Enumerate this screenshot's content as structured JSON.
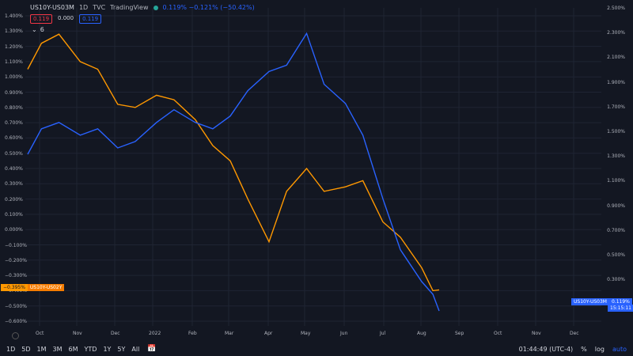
{
  "legend": {
    "symbol": "US10Y-US03M",
    "interval": "1D",
    "exchange": "TVC",
    "source": "TradingView",
    "change": "0.119% −0.121% (−50.42%)"
  },
  "badges": {
    "bid": "0.119",
    "spread": "0.000",
    "ask": "0.119"
  },
  "collapse": {
    "label": "6"
  },
  "left_axis": [
    "1.400%",
    "1.300%",
    "1.200%",
    "1.100%",
    "1.000%",
    "0.900%",
    "0.800%",
    "0.700%",
    "0.600%",
    "0.500%",
    "0.400%",
    "0.300%",
    "0.200%",
    "0.100%",
    "0.000%",
    "−0.100%",
    "−0.200%",
    "−0.300%",
    "−0.400%",
    "−0.500%",
    "−0.600%"
  ],
  "right_axis": [
    "2.500%",
    "2.300%",
    "2.100%",
    "1.900%",
    "1.700%",
    "1.500%",
    "1.300%",
    "1.100%",
    "0.900%",
    "0.700%",
    "0.500%",
    "0.300%"
  ],
  "x_axis": [
    "Oct",
    "Nov",
    "Dec",
    "2022",
    "Feb",
    "Mar",
    "Apr",
    "May",
    "Jun",
    "Jul",
    "Aug",
    "Sep",
    "Oct",
    "Nov",
    "Dec"
  ],
  "tags": {
    "left_value": "−0.395%",
    "left_name": "US10Y-US02Y",
    "right_name": "US10Y-US03M",
    "right_value": "0.119%",
    "right_time": "15:15:11"
  },
  "bottom": {
    "timeframes": [
      "1D",
      "5D",
      "1M",
      "3M",
      "6M",
      "YTD",
      "1Y",
      "5Y",
      "All"
    ],
    "clock": "01:44:49 (UTC-4)",
    "pct": "%",
    "log": "log",
    "auto": "auto"
  },
  "chart_data": {
    "type": "line",
    "x": [
      "2021-09-20",
      "2021-10-01",
      "2021-10-15",
      "2021-11-01",
      "2021-11-15",
      "2021-12-01",
      "2021-12-15",
      "2022-01-01",
      "2022-01-15",
      "2022-02-01",
      "2022-02-15",
      "2022-03-01",
      "2022-03-15",
      "2022-04-01",
      "2022-04-15",
      "2022-05-01",
      "2022-05-15",
      "2022-06-01",
      "2022-06-15",
      "2022-07-01",
      "2022-07-15",
      "2022-08-01",
      "2022-08-10",
      "2022-08-15"
    ],
    "series": [
      {
        "name": "US10Y-US02Y",
        "axis": "left",
        "color": "#ff9800",
        "values": [
          1.05,
          1.22,
          1.28,
          1.1,
          1.05,
          0.82,
          0.8,
          0.88,
          0.85,
          0.72,
          0.55,
          0.45,
          0.2,
          -0.08,
          0.25,
          0.4,
          0.25,
          0.28,
          0.32,
          0.05,
          -0.05,
          -0.25,
          -0.4,
          -0.395
        ]
      },
      {
        "name": "US10Y-US03M",
        "axis": "right",
        "color": "#2962ff",
        "values": [
          1.35,
          1.55,
          1.6,
          1.5,
          1.55,
          1.4,
          1.45,
          1.6,
          1.7,
          1.6,
          1.55,
          1.65,
          1.85,
          2.0,
          2.05,
          2.3,
          1.9,
          1.75,
          1.5,
          1.0,
          0.6,
          0.35,
          0.25,
          0.119
        ]
      }
    ],
    "ylim_left": [
      -0.6,
      1.4
    ],
    "ylim_right": [
      0.2,
      2.5
    ],
    "grid": true,
    "title": "",
    "xlabel": "",
    "ylabel": ""
  }
}
